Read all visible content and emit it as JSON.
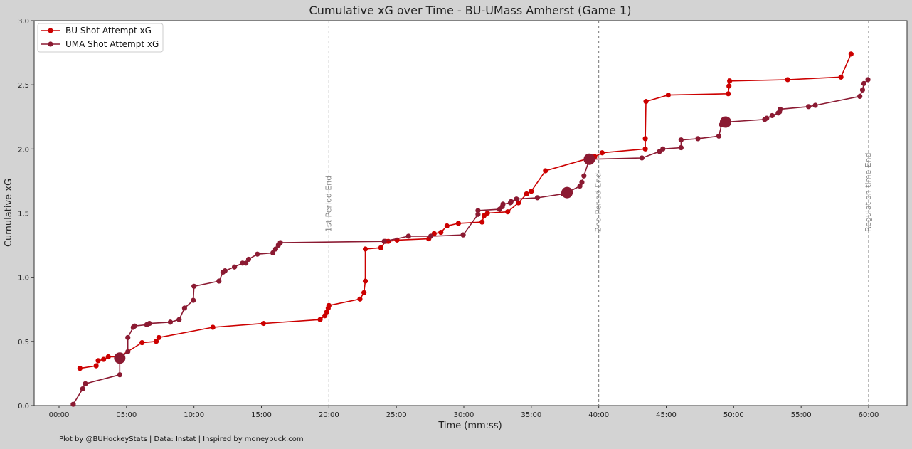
{
  "chart_data": {
    "type": "line",
    "title": "Cumulative xG over Time - BU-UMass Amherst (Game 1)",
    "xlabel": "Time (mm:ss)",
    "ylabel": "Cumulative xG",
    "xlim": [
      0,
      62.5
    ],
    "ylim": [
      0,
      3.0
    ],
    "x_ticks": [
      0,
      5,
      10,
      15,
      20,
      25,
      30,
      35,
      40,
      45,
      50,
      55,
      60
    ],
    "x_tick_labels": [
      "00:00",
      "05:00",
      "10:00",
      "15:00",
      "20:00",
      "25:00",
      "30:00",
      "35:00",
      "40:00",
      "45:00",
      "50:00",
      "55:00",
      "60:00"
    ],
    "y_ticks": [
      0,
      0.5,
      1.0,
      1.5,
      2.0,
      2.5,
      3.0
    ],
    "y_tick_labels": [
      "0.0",
      "0.5",
      "1.0",
      "1.5",
      "2.0",
      "2.5",
      "3.0"
    ],
    "grid": false,
    "legend_position": "top-left",
    "annotations": [
      {
        "x": 20,
        "label": "1st Period End"
      },
      {
        "x": 40,
        "label": "2nd Period End"
      },
      {
        "x": 60,
        "label": "Regulation time End"
      }
    ],
    "series": [
      {
        "name": "BU Shot Attempt xG",
        "color": "#cc0000",
        "points": [
          [
            1.55,
            0.29
          ],
          [
            2.75,
            0.31
          ],
          [
            2.9,
            0.35
          ],
          [
            3.3,
            0.36
          ],
          [
            3.65,
            0.38
          ],
          [
            4.45,
            0.38
          ],
          [
            6.15,
            0.49
          ],
          [
            7.2,
            0.5
          ],
          [
            7.4,
            0.53
          ],
          [
            11.4,
            0.61
          ],
          [
            15.15,
            0.64
          ],
          [
            19.35,
            0.67
          ],
          [
            19.7,
            0.7
          ],
          [
            19.85,
            0.73
          ],
          [
            19.95,
            0.76
          ],
          [
            20.0,
            0.78
          ],
          [
            22.3,
            0.83
          ],
          [
            22.6,
            0.88
          ],
          [
            22.7,
            0.97
          ],
          [
            22.7,
            1.22
          ],
          [
            23.85,
            1.23
          ],
          [
            24.2,
            1.28
          ],
          [
            24.4,
            1.28
          ],
          [
            25.05,
            1.29
          ],
          [
            27.4,
            1.3
          ],
          [
            27.8,
            1.34
          ],
          [
            28.3,
            1.35
          ],
          [
            28.75,
            1.4
          ],
          [
            29.6,
            1.42
          ],
          [
            31.35,
            1.43
          ],
          [
            31.5,
            1.48
          ],
          [
            31.75,
            1.5
          ],
          [
            33.25,
            1.51
          ],
          [
            34.05,
            1.58
          ],
          [
            34.65,
            1.65
          ],
          [
            35.0,
            1.67
          ],
          [
            36.05,
            1.83
          ],
          [
            39.7,
            1.94
          ],
          [
            40.25,
            1.97
          ],
          [
            43.45,
            2.0
          ],
          [
            43.45,
            2.08
          ],
          [
            43.5,
            2.37
          ],
          [
            45.15,
            2.42
          ],
          [
            49.6,
            2.43
          ],
          [
            49.65,
            2.49
          ],
          [
            49.7,
            2.53
          ],
          [
            54.0,
            2.54
          ],
          [
            57.95,
            2.56
          ],
          [
            58.7,
            2.74
          ]
        ],
        "big_points": []
      },
      {
        "name": "UMA Shot Attempt xG",
        "color": "#8b1a32",
        "points": [
          [
            1.05,
            0.01
          ],
          [
            1.75,
            0.13
          ],
          [
            1.95,
            0.17
          ],
          [
            4.5,
            0.24
          ],
          [
            4.5,
            0.37
          ],
          [
            5.1,
            0.42
          ],
          [
            5.1,
            0.53
          ],
          [
            5.5,
            0.61
          ],
          [
            5.6,
            0.62
          ],
          [
            6.5,
            0.63
          ],
          [
            6.7,
            0.64
          ],
          [
            8.25,
            0.65
          ],
          [
            8.9,
            0.67
          ],
          [
            9.3,
            0.76
          ],
          [
            9.95,
            0.82
          ],
          [
            10.0,
            0.93
          ],
          [
            11.85,
            0.97
          ],
          [
            12.15,
            1.04
          ],
          [
            12.3,
            1.05
          ],
          [
            13.0,
            1.08
          ],
          [
            13.6,
            1.11
          ],
          [
            13.85,
            1.11
          ],
          [
            14.05,
            1.14
          ],
          [
            14.7,
            1.18
          ],
          [
            15.85,
            1.19
          ],
          [
            16.05,
            1.22
          ],
          [
            16.25,
            1.25
          ],
          [
            16.4,
            1.27
          ],
          [
            24.1,
            1.28
          ],
          [
            25.9,
            1.32
          ],
          [
            27.55,
            1.32
          ],
          [
            29.95,
            1.33
          ],
          [
            31.05,
            1.49
          ],
          [
            31.05,
            1.52
          ],
          [
            32.65,
            1.53
          ],
          [
            32.85,
            1.55
          ],
          [
            32.9,
            1.57
          ],
          [
            33.45,
            1.58
          ],
          [
            33.5,
            1.59
          ],
          [
            33.9,
            1.61
          ],
          [
            35.45,
            1.62
          ],
          [
            37.35,
            1.65
          ],
          [
            37.65,
            1.66
          ],
          [
            38.6,
            1.71
          ],
          [
            38.75,
            1.74
          ],
          [
            38.9,
            1.79
          ],
          [
            39.3,
            1.92
          ],
          [
            43.2,
            1.93
          ],
          [
            44.5,
            1.98
          ],
          [
            44.75,
            2.0
          ],
          [
            46.1,
            2.01
          ],
          [
            46.1,
            2.07
          ],
          [
            47.35,
            2.08
          ],
          [
            48.9,
            2.1
          ],
          [
            49.1,
            2.19
          ],
          [
            49.4,
            2.21
          ],
          [
            52.3,
            2.23
          ],
          [
            52.45,
            2.24
          ],
          [
            52.85,
            2.26
          ],
          [
            53.3,
            2.28
          ],
          [
            53.4,
            2.29
          ],
          [
            53.45,
            2.31
          ],
          [
            55.55,
            2.33
          ],
          [
            56.05,
            2.34
          ],
          [
            59.35,
            2.41
          ],
          [
            59.55,
            2.46
          ],
          [
            59.65,
            2.51
          ],
          [
            59.95,
            2.54
          ]
        ],
        "big_points": [
          [
            4.5,
            0.37
          ],
          [
            37.65,
            1.66
          ],
          [
            39.3,
            1.92
          ],
          [
            49.4,
            2.21
          ]
        ]
      }
    ]
  },
  "footer": {
    "credit": "Plot by @BUHockeyStats | Data: Instat | Inspired by moneypuck.com"
  }
}
